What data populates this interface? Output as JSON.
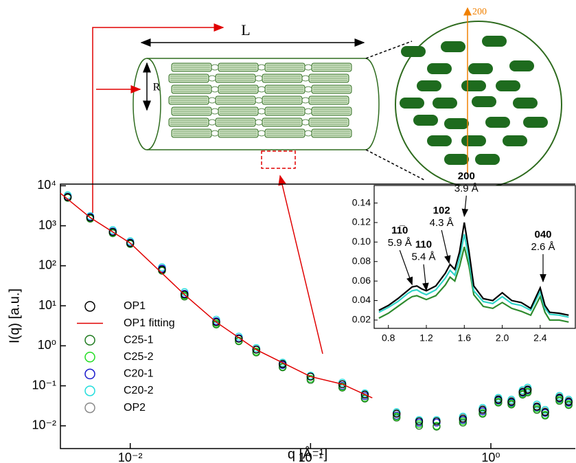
{
  "chart_data": [
    {
      "type": "scatter",
      "xscale": "log",
      "yscale": "log",
      "xlabel": "q [Å⁻¹]",
      "ylabel": "I(q) [a.u.]",
      "xlim": [
        0.0041,
        2.94
      ],
      "ylim": [
        0.0027,
        11000
      ],
      "xticks": [
        {
          "value": 0.01,
          "label": "10⁻²"
        },
        {
          "value": 0.1,
          "label": "10⁻¹"
        },
        {
          "value": 1,
          "label": "10⁰"
        }
      ],
      "yticks": [
        {
          "value": 0.01,
          "label": "10⁻²"
        },
        {
          "value": 0.1,
          "label": "10⁻¹"
        },
        {
          "value": 1,
          "label": "10⁰"
        },
        {
          "value": 10,
          "label": "10¹"
        },
        {
          "value": 100,
          "label": "10²"
        },
        {
          "value": 1000,
          "label": "10³"
        },
        {
          "value": 10000,
          "label": "10⁴"
        }
      ],
      "legend": "center-left",
      "x": [
        0.0045,
        0.006,
        0.008,
        0.01,
        0.015,
        0.02,
        0.03,
        0.04,
        0.05,
        0.07,
        0.1,
        0.15,
        0.2,
        0.3,
        0.4,
        0.5,
        0.7,
        0.9,
        1.1,
        1.3,
        1.5,
        1.6,
        1.8,
        2.0,
        2.4,
        2.7
      ],
      "series": [
        {
          "name": "OP1",
          "color": "#000000",
          "style": "marker",
          "values": [
            5200,
            1600,
            700,
            370,
            80,
            19,
            3.9,
            1.5,
            0.8,
            0.35,
            0.17,
            0.11,
            0.06,
            0.02,
            0.013,
            0.013,
            0.015,
            0.025,
            0.045,
            0.04,
            0.07,
            0.08,
            0.03,
            0.022,
            0.05,
            0.04
          ]
        },
        {
          "name": "OP1 fitting",
          "color": "#e00000",
          "style": "line",
          "x": [
            0.0041,
            0.006,
            0.01,
            0.02,
            0.03,
            0.05,
            0.1,
            0.15,
            0.22
          ],
          "values": [
            6500,
            1600,
            370,
            19,
            3.9,
            0.8,
            0.17,
            0.11,
            0.05
          ]
        },
        {
          "name": "C25-1",
          "color": "#1e7a1e",
          "style": "marker",
          "values": [
            5000,
            1500,
            650,
            350,
            75,
            17,
            3.4,
            1.3,
            0.68,
            0.29,
            0.14,
            0.09,
            0.048,
            0.016,
            0.01,
            0.0095,
            0.012,
            0.02,
            0.038,
            0.034,
            0.06,
            0.068,
            0.025,
            0.018,
            0.042,
            0.033
          ]
        },
        {
          "name": "C25-2",
          "color": "#22dd22",
          "style": "marker",
          "values": [
            5100,
            1550,
            680,
            360,
            78,
            18,
            3.6,
            1.35,
            0.72,
            0.3,
            0.15,
            0.095,
            0.05,
            0.017,
            0.011,
            0.01,
            0.013,
            0.021,
            0.04,
            0.036,
            0.063,
            0.072,
            0.027,
            0.019,
            0.045,
            0.035
          ]
        },
        {
          "name": "C20-1",
          "color": "#1a1acc",
          "style": "marker",
          "values": [
            5300,
            1650,
            720,
            380,
            85,
            20,
            4.1,
            1.55,
            0.8,
            0.33,
            0.15,
            0.1,
            0.055,
            0.018,
            0.012,
            0.012,
            0.014,
            0.023,
            0.043,
            0.038,
            0.067,
            0.077,
            0.029,
            0.021,
            0.048,
            0.038
          ]
        },
        {
          "name": "C20-2",
          "color": "#22dddd",
          "style": "marker",
          "values": [
            5800,
            1750,
            780,
            410,
            92,
            22,
            4.5,
            1.7,
            0.88,
            0.38,
            0.18,
            0.12,
            0.065,
            0.022,
            0.014,
            0.014,
            0.017,
            0.028,
            0.05,
            0.045,
            0.078,
            0.09,
            0.034,
            0.025,
            0.056,
            0.045
          ]
        },
        {
          "name": "OP2",
          "color": "#888888",
          "style": "marker",
          "values": [
            5400,
            1650,
            710,
            375,
            82,
            19.5,
            4,
            1.5,
            0.82,
            0.36,
            0.17,
            0.11,
            0.062,
            0.021,
            0.013,
            0.013,
            0.016,
            0.026,
            0.047,
            0.042,
            0.073,
            0.083,
            0.031,
            0.023,
            0.052,
            0.042
          ]
        }
      ]
    },
    {
      "type": "line",
      "xlim": [
        0.65,
        2.77
      ],
      "ylim": [
        0.0115,
        0.158
      ],
      "xticks": [
        0.8,
        1.2,
        1.6,
        {
          "value": 2,
          "label": "2.0"
        },
        2.4
      ],
      "yticks": [
        0.02,
        0.04,
        0.06,
        0.08,
        {
          "value": 0.1,
          "label": "0.10"
        },
        0.12,
        0.14
      ],
      "x": [
        0.7,
        0.8,
        0.9,
        1.0,
        1.05,
        1.1,
        1.15,
        1.2,
        1.3,
        1.4,
        1.45,
        1.5,
        1.55,
        1.6,
        1.65,
        1.7,
        1.8,
        1.9,
        2.0,
        2.1,
        2.2,
        2.3,
        2.4,
        2.45,
        2.5,
        2.6,
        2.7
      ],
      "series": [
        {
          "color": "#2e8b2e",
          "values": [
            0.022,
            0.027,
            0.034,
            0.041,
            0.044,
            0.045,
            0.043,
            0.041,
            0.045,
            0.056,
            0.064,
            0.06,
            0.075,
            0.095,
            0.075,
            0.046,
            0.034,
            0.032,
            0.038,
            0.032,
            0.029,
            0.025,
            0.044,
            0.028,
            0.02,
            0.02,
            0.018
          ]
        },
        {
          "color": "#30d5c8",
          "values": [
            0.028,
            0.033,
            0.039,
            0.047,
            0.05,
            0.051,
            0.048,
            0.046,
            0.051,
            0.063,
            0.071,
            0.066,
            0.083,
            0.108,
            0.082,
            0.05,
            0.039,
            0.037,
            0.044,
            0.037,
            0.035,
            0.03,
            0.049,
            0.032,
            0.026,
            0.025,
            0.023
          ]
        },
        {
          "color": "#000000",
          "values": [
            0.03,
            0.035,
            0.042,
            0.05,
            0.054,
            0.055,
            0.052,
            0.05,
            0.055,
            0.068,
            0.077,
            0.072,
            0.09,
            0.12,
            0.09,
            0.055,
            0.042,
            0.04,
            0.048,
            0.04,
            0.038,
            0.032,
            0.053,
            0.035,
            0.028,
            0.027,
            0.025
          ]
        }
      ],
      "annotations": [
        {
          "text": "11̅0",
          "sublabel": "5.9 Å",
          "x": 1.05,
          "y": 0.055
        },
        {
          "text": "110",
          "sublabel": "5.4 Å",
          "x": 1.2,
          "y": 0.049
        },
        {
          "text": "102",
          "sublabel": "4.3 Å",
          "x": 1.44,
          "y": 0.077
        },
        {
          "text": "200",
          "sublabel": "3.9 Å",
          "x": 1.6,
          "y": 0.125
        },
        {
          "text": "040",
          "sublabel": "2.6 Å",
          "x": 2.43,
          "y": 0.058
        }
      ]
    }
  ],
  "diagram": {
    "length_label": "L",
    "radius_label": "R",
    "direction_label": "200"
  }
}
